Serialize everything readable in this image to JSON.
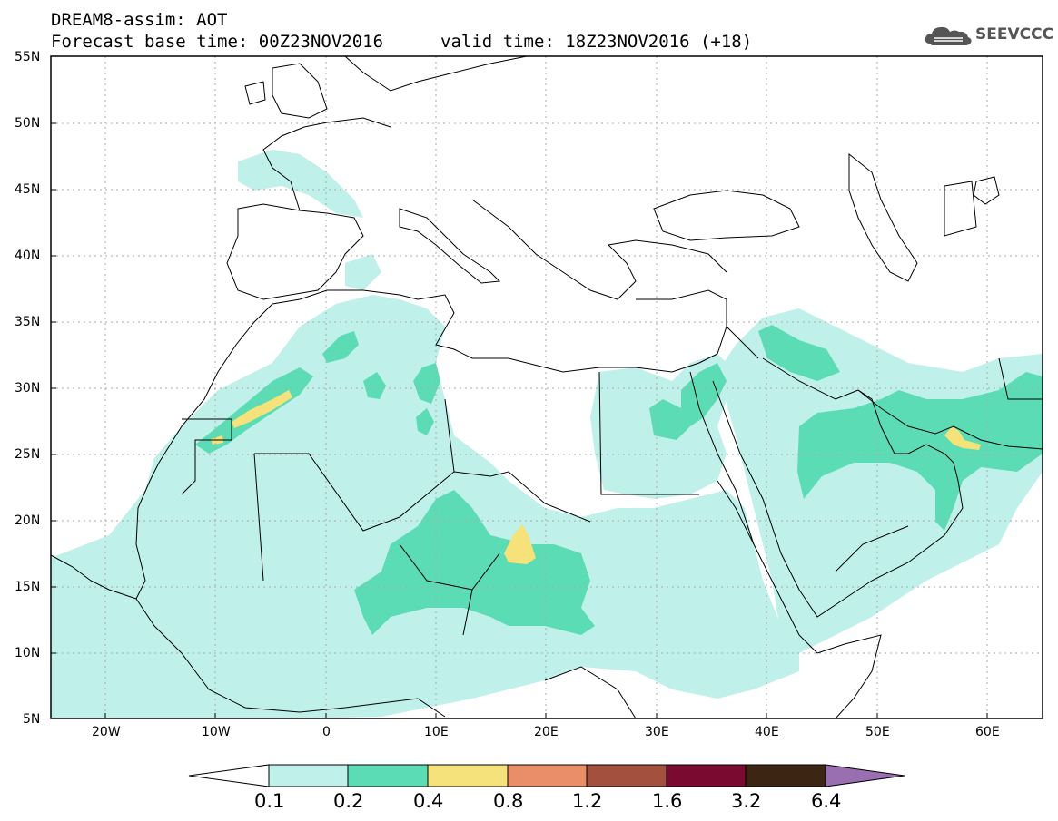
{
  "header": {
    "title_line1": "DREAM8-assim: AOT",
    "title_line2": "Forecast base time: 00Z23NOV2016",
    "valid_time": "valid time: 18Z23NOV2016 (+18)",
    "logo_text": "SEEVCCC",
    "logo_icon": "cloud-logo-icon"
  },
  "map": {
    "lat_labels": [
      "55N",
      "50N",
      "45N",
      "40N",
      "35N",
      "30N",
      "25N",
      "20N",
      "15N",
      "10N",
      "5N"
    ],
    "lon_labels": [
      "20W",
      "10W",
      "0",
      "10E",
      "20E",
      "30E",
      "40E",
      "50E",
      "60E"
    ],
    "fill_colors": {
      "level_0_1": "#bff0e9",
      "level_0_2": "#5cdcb4",
      "level_0_4": "#f5e27a"
    }
  },
  "colorbar": {
    "labels": [
      "0.1",
      "0.2",
      "0.4",
      "0.8",
      "1.2",
      "1.6",
      "3.2",
      "6.4"
    ],
    "colors": [
      "#ffffff",
      "#bff0e9",
      "#5cdcb4",
      "#f5e27a",
      "#e98e68",
      "#a4503f",
      "#7b0a30",
      "#3d2514",
      "#9a6fb2"
    ]
  }
}
